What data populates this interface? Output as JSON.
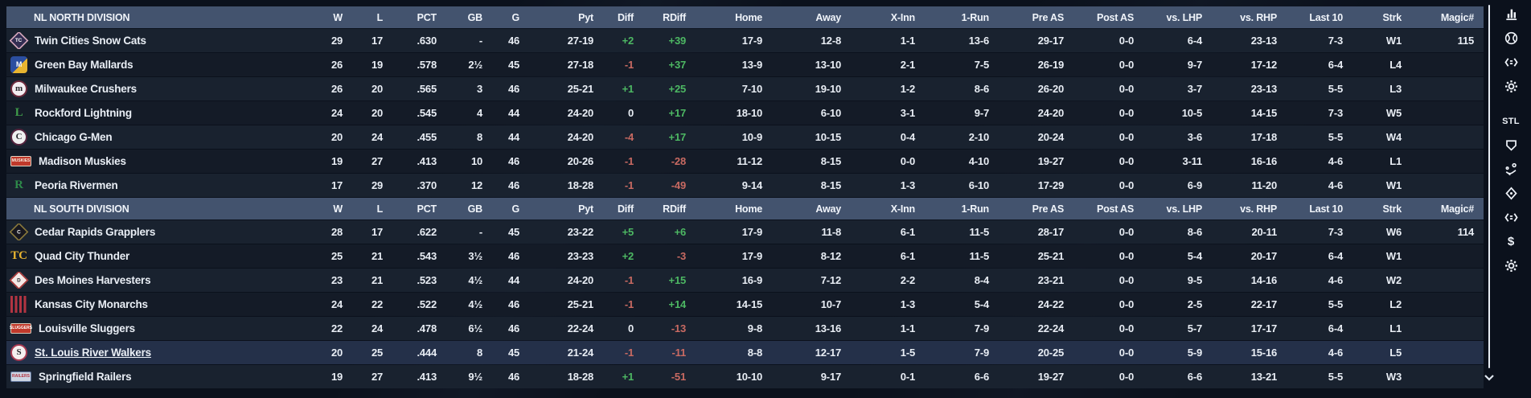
{
  "columns": [
    "W",
    "L",
    "PCT",
    "GB",
    "G",
    "Pyt",
    "Diff",
    "RDiff",
    "Home",
    "Away",
    "X-Inn",
    "1-Run",
    "Pre AS",
    "Post AS",
    "vs. LHP",
    "vs. RHP",
    "Last 10",
    "Strk",
    "Magic#"
  ],
  "colors": {
    "header_bg": "#43536e",
    "row_odd": "#19222f",
    "row_even": "#141b27",
    "user_row": "#243049",
    "positive": "#4db863",
    "negative": "#c96a62",
    "text": "#e9eef5"
  },
  "divisions": [
    {
      "name": "NL NORTH DIVISION",
      "teams": [
        {
          "name": "Twin Cities Snow Cats",
          "user_team": false,
          "logo": {
            "shape": "diamond",
            "label": "TC",
            "bg": "#332d52",
            "border": "#d8a9bd",
            "fg": "#ffffff"
          },
          "stats": [
            "29",
            "17",
            ".630",
            "-",
            "46",
            "27-19",
            "+2",
            "+39",
            "17-9",
            "12-8",
            "1-1",
            "13-6",
            "29-17",
            "0-0",
            "6-4",
            "23-13",
            "7-3",
            "W1",
            "115"
          ]
        },
        {
          "name": "Green Bay  Mallards",
          "user_team": false,
          "logo": {
            "shape": "square",
            "label": "M",
            "bg": "#2b4ea0",
            "bg2": "#e8b430",
            "border": "#2b4ea0",
            "fg": "#ffffff"
          },
          "stats": [
            "26",
            "19",
            ".578",
            "2½",
            "45",
            "27-18",
            "-1",
            "+37",
            "13-9",
            "13-10",
            "2-1",
            "7-5",
            "26-19",
            "0-0",
            "9-7",
            "17-12",
            "6-4",
            "L4",
            ""
          ]
        },
        {
          "name": "Milwaukee Crushers",
          "user_team": false,
          "logo": {
            "shape": "circle",
            "label": "m",
            "bg": "#f3edf1",
            "border": "#6d2a3c",
            "fg": "#26262a"
          },
          "stats": [
            "26",
            "20",
            ".565",
            "3",
            "46",
            "25-21",
            "+1",
            "+25",
            "7-10",
            "19-10",
            "1-2",
            "8-6",
            "26-20",
            "0-0",
            "3-7",
            "23-13",
            "5-5",
            "L3",
            ""
          ]
        },
        {
          "name": "Rockford Lightning",
          "user_team": false,
          "logo": {
            "shape": "text",
            "label": "L",
            "bg": "transparent",
            "border": "transparent",
            "fg": "#3f9b4a"
          },
          "stats": [
            "24",
            "20",
            ".545",
            "4",
            "44",
            "24-20",
            "0",
            "+17",
            "18-10",
            "6-10",
            "3-1",
            "9-7",
            "24-20",
            "0-0",
            "10-5",
            "14-15",
            "7-3",
            "W5",
            ""
          ]
        },
        {
          "name": "Chicago G-Men",
          "user_team": false,
          "logo": {
            "shape": "circle",
            "label": "C",
            "bg": "#efefef",
            "border": "#55243e",
            "fg": "#26262a"
          },
          "stats": [
            "20",
            "24",
            ".455",
            "8",
            "44",
            "24-20",
            "-4",
            "+17",
            "10-9",
            "10-15",
            "0-4",
            "2-10",
            "20-24",
            "0-0",
            "3-6",
            "17-18",
            "5-5",
            "W4",
            ""
          ]
        },
        {
          "name": "Madison Muskies",
          "user_team": false,
          "logo": {
            "shape": "badge",
            "label": "MUSKIES",
            "bg": "#c0392b",
            "border": "#e0d5c5",
            "fg": "#f7ede0"
          },
          "stats": [
            "19",
            "27",
            ".413",
            "10",
            "46",
            "20-26",
            "-1",
            "-28",
            "11-12",
            "8-15",
            "0-0",
            "4-10",
            "19-27",
            "0-0",
            "3-11",
            "16-16",
            "4-6",
            "L1",
            ""
          ]
        },
        {
          "name": "Peoria Rivermen",
          "user_team": false,
          "logo": {
            "shape": "text",
            "label": "R",
            "bg": "transparent",
            "border": "transparent",
            "fg": "#2e8a4a"
          },
          "stats": [
            "17",
            "29",
            ".370",
            "12",
            "46",
            "18-28",
            "-1",
            "-49",
            "9-14",
            "8-15",
            "1-3",
            "6-10",
            "17-29",
            "0-0",
            "6-9",
            "11-20",
            "4-6",
            "W1",
            ""
          ]
        }
      ]
    },
    {
      "name": "NL SOUTH DIVISION",
      "teams": [
        {
          "name": "Cedar Rapids Grapplers",
          "user_team": false,
          "logo": {
            "shape": "diamond",
            "label": "C",
            "bg": "#17171f",
            "border": "#8a7a3c",
            "fg": "#ffffff"
          },
          "stats": [
            "28",
            "17",
            ".622",
            "-",
            "45",
            "23-22",
            "+5",
            "+6",
            "17-9",
            "11-8",
            "6-1",
            "11-5",
            "28-17",
            "0-0",
            "8-6",
            "20-11",
            "7-3",
            "W6",
            "114"
          ]
        },
        {
          "name": "Quad City Thunder",
          "user_team": false,
          "logo": {
            "shape": "text",
            "label": "TC",
            "bg": "transparent",
            "border": "transparent",
            "fg": "#e8b430"
          },
          "stats": [
            "25",
            "21",
            ".543",
            "3½",
            "46",
            "23-23",
            "+2",
            "-3",
            "17-9",
            "8-12",
            "6-1",
            "11-5",
            "25-21",
            "0-0",
            "5-4",
            "20-17",
            "6-4",
            "W1",
            ""
          ]
        },
        {
          "name": "Des Moines Harvesters",
          "user_team": false,
          "logo": {
            "shape": "diamond",
            "label": "D",
            "bg": "#f3e9e7",
            "border": "#a83636",
            "fg": "#26262a"
          },
          "stats": [
            "23",
            "21",
            ".523",
            "4½",
            "44",
            "24-20",
            "-1",
            "+15",
            "16-9",
            "7-12",
            "2-2",
            "8-4",
            "23-21",
            "0-0",
            "9-5",
            "14-16",
            "4-6",
            "W2",
            ""
          ]
        },
        {
          "name": "Kansas City Monarchs",
          "user_team": false,
          "logo": {
            "shape": "stripes",
            "label": "",
            "bg": "#b23442",
            "border": "#38528c",
            "fg": "#b23442"
          },
          "stats": [
            "24",
            "22",
            ".522",
            "4½",
            "46",
            "25-21",
            "-1",
            "+14",
            "14-15",
            "10-7",
            "1-3",
            "5-4",
            "24-22",
            "0-0",
            "2-5",
            "22-17",
            "5-5",
            "L2",
            ""
          ]
        },
        {
          "name": "Louisville Sluggers",
          "user_team": false,
          "logo": {
            "shape": "badge",
            "label": "SLUGGERS",
            "bg": "#c0392b",
            "border": "#d8c9b8",
            "fg": "#ffffff"
          },
          "stats": [
            "22",
            "24",
            ".478",
            "6½",
            "46",
            "22-24",
            "0",
            "-13",
            "9-8",
            "13-16",
            "1-1",
            "7-9",
            "22-24",
            "0-0",
            "5-7",
            "17-17",
            "6-4",
            "L1",
            ""
          ]
        },
        {
          "name": "St. Louis River Walkers",
          "user_team": true,
          "logo": {
            "shape": "circle",
            "label": "S",
            "bg": "#f5eff0",
            "border": "#a83a52",
            "fg": "#26262a"
          },
          "stats": [
            "20",
            "25",
            ".444",
            "8",
            "45",
            "21-24",
            "-1",
            "-11",
            "8-8",
            "12-17",
            "1-5",
            "7-9",
            "20-25",
            "0-0",
            "5-9",
            "15-16",
            "4-6",
            "L5",
            ""
          ]
        },
        {
          "name": "Springfield Railers",
          "user_team": false,
          "logo": {
            "shape": "badge",
            "label": "RAILERS",
            "bg": "#ccd4e2",
            "border": "#5a6f96",
            "fg": "#b23442"
          },
          "stats": [
            "19",
            "27",
            ".413",
            "9½",
            "46",
            "18-28",
            "+1",
            "-51",
            "10-10",
            "9-17",
            "0-1",
            "6-6",
            "19-27",
            "0-0",
            "6-6",
            "13-21",
            "5-5",
            "W3",
            ""
          ]
        }
      ]
    }
  ],
  "sidebar": {
    "icons": [
      {
        "name": "bar-chart-icon",
        "label": ""
      },
      {
        "name": "baseball-icon",
        "label": ""
      },
      {
        "name": "compare-icon",
        "label": ""
      },
      {
        "name": "gear-icon",
        "label": ""
      },
      {
        "name": "team-abbrev-label",
        "label": "STL"
      },
      {
        "name": "home-plate-icon",
        "label": ""
      },
      {
        "name": "pitching-icon",
        "label": ""
      },
      {
        "name": "target-icon",
        "label": ""
      },
      {
        "name": "compare-icon",
        "label": ""
      },
      {
        "name": "finance-dollar-icon",
        "label": "$"
      },
      {
        "name": "gear-icon",
        "label": ""
      }
    ]
  }
}
